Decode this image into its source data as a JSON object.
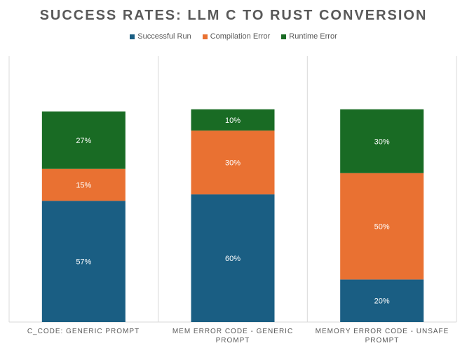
{
  "chart_data": {
    "type": "bar",
    "stacked": true,
    "title": "SUCCESS RATES: LLM C TO RUST CONVERSION",
    "categories": [
      "C_CODE: GENERIC PROMPT",
      "MEM ERROR CODE - GENERIC PROMPT",
      "MEMORY ERROR CODE - UNSAFE PROMPT"
    ],
    "series": [
      {
        "name": "Successful Run",
        "color": "#1a5e83",
        "values": [
          57,
          60,
          20
        ],
        "labels": [
          "57%",
          "60%",
          "20%"
        ]
      },
      {
        "name": "Compilation Error",
        "color": "#e97132",
        "values": [
          15,
          30,
          50
        ],
        "labels": [
          "15%",
          "30%",
          "50%"
        ]
      },
      {
        "name": "Runtime Error",
        "color": "#196b24",
        "values": [
          27,
          10,
          30
        ],
        "labels": [
          "27%",
          "10%",
          "30%"
        ]
      }
    ],
    "ylim": [
      0,
      125
    ],
    "legend_position": "top",
    "grid": "vertical category separators"
  }
}
